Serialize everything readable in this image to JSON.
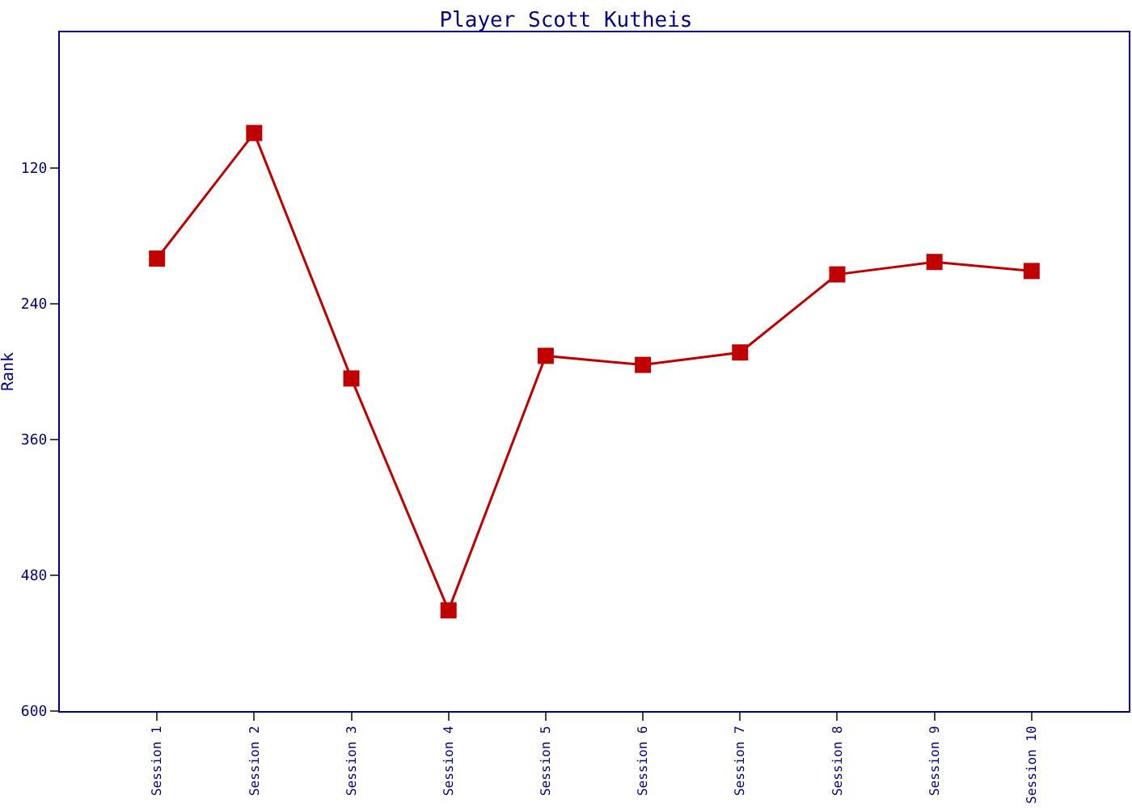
{
  "chart_data": {
    "type": "line",
    "title": "Player Scott Kutheis",
    "ylabel": "Rank",
    "categories": [
      "Session 1",
      "Session 2",
      "Session 3",
      "Session 4",
      "Session 5",
      "Session 6",
      "Session 7",
      "Session 8",
      "Session 9",
      "Session 10"
    ],
    "series": [
      {
        "color": "#c00000",
        "values": [
          200,
          89,
          306,
          511,
          286,
          294,
          283,
          214,
          203,
          211
        ]
      }
    ],
    "ylim": [
      600,
      0
    ],
    "yticks": [
      120,
      240,
      360,
      480,
      600
    ],
    "legend": false,
    "marker": "square",
    "line_style": "solid"
  }
}
